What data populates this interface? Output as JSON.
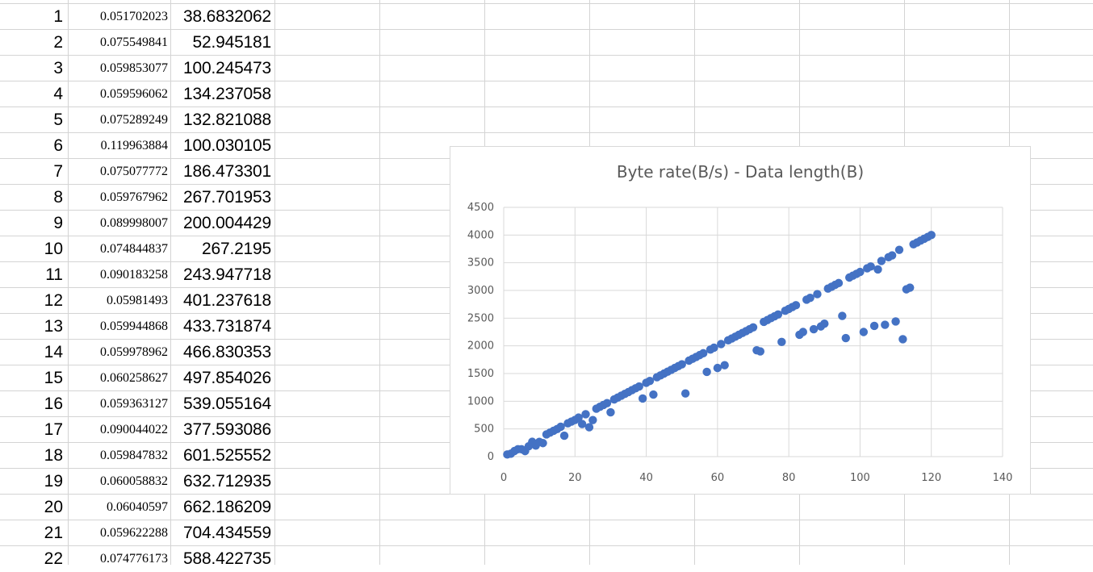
{
  "sheet": {
    "rows": [
      {
        "num": "1",
        "a": "0.051702023",
        "b": "38.6832062"
      },
      {
        "num": "2",
        "a": "0.075549841",
        "b": "52.945181"
      },
      {
        "num": "3",
        "a": "0.059853077",
        "b": "100.245473"
      },
      {
        "num": "4",
        "a": "0.059596062",
        "b": "134.237058"
      },
      {
        "num": "5",
        "a": "0.075289249",
        "b": "132.821088"
      },
      {
        "num": "6",
        "a": "0.119963884",
        "b": "100.030105"
      },
      {
        "num": "7",
        "a": "0.075077772",
        "b": "186.473301"
      },
      {
        "num": "8",
        "a": "0.059767962",
        "b": "267.701953"
      },
      {
        "num": "9",
        "a": "0.089998007",
        "b": "200.004429"
      },
      {
        "num": "10",
        "a": "0.074844837",
        "b": "267.2195"
      },
      {
        "num": "11",
        "a": "0.090183258",
        "b": "243.947718"
      },
      {
        "num": "12",
        "a": "0.05981493",
        "b": "401.237618"
      },
      {
        "num": "13",
        "a": "0.059944868",
        "b": "433.731874"
      },
      {
        "num": "14",
        "a": "0.059978962",
        "b": "466.830353"
      },
      {
        "num": "15",
        "a": "0.060258627",
        "b": "497.854026"
      },
      {
        "num": "16",
        "a": "0.059363127",
        "b": "539.055164"
      },
      {
        "num": "17",
        "a": "0.090044022",
        "b": "377.593086"
      },
      {
        "num": "18",
        "a": "0.059847832",
        "b": "601.525552"
      },
      {
        "num": "19",
        "a": "0.060058832",
        "b": "632.712935"
      },
      {
        "num": "20",
        "a": "0.06040597",
        "b": "662.186209"
      },
      {
        "num": "21",
        "a": "0.059622288",
        "b": "704.434559"
      },
      {
        "num": "22",
        "a": "0.074776173",
        "b": "588.422735"
      }
    ]
  },
  "colors": {
    "marker": "#4472c4",
    "gridline": "#d9d9d9",
    "axis_text": "#595959"
  },
  "chart_data": {
    "type": "scatter",
    "title": "Byte rate(B/s) - Data length(B)",
    "xlim": [
      0,
      140
    ],
    "ylim": [
      0,
      4500
    ],
    "x_ticks": [
      "0",
      "20",
      "40",
      "60",
      "80",
      "100",
      "120",
      "140"
    ],
    "y_ticks": [
      "0",
      "500",
      "1000",
      "1500",
      "2000",
      "2500",
      "3000",
      "3500",
      "4000",
      "4500"
    ],
    "grid": true,
    "series": [
      {
        "points": [
          [
            1,
            38.7
          ],
          [
            2,
            52.9
          ],
          [
            3,
            100.2
          ],
          [
            4,
            134.2
          ],
          [
            5,
            132.8
          ],
          [
            6,
            100.0
          ],
          [
            7,
            186.5
          ],
          [
            8,
            267.7
          ],
          [
            9,
            200.0
          ],
          [
            10,
            267.2
          ],
          [
            11,
            243.9
          ],
          [
            12,
            401.2
          ],
          [
            13,
            433.7
          ],
          [
            14,
            466.8
          ],
          [
            15,
            497.9
          ],
          [
            16,
            539.1
          ],
          [
            17,
            377.6
          ],
          [
            18,
            601.5
          ],
          [
            19,
            632.7
          ],
          [
            20,
            662.2
          ],
          [
            21,
            704.4
          ],
          [
            22,
            588.4
          ],
          [
            23,
            766
          ],
          [
            24,
            530
          ],
          [
            25,
            660
          ],
          [
            26,
            866
          ],
          [
            27,
            900
          ],
          [
            28,
            933
          ],
          [
            29,
            966
          ],
          [
            30,
            800
          ],
          [
            31,
            1033
          ],
          [
            32,
            1066
          ],
          [
            33,
            1100
          ],
          [
            34,
            1133
          ],
          [
            35,
            1166
          ],
          [
            36,
            1200
          ],
          [
            37,
            1233
          ],
          [
            38,
            1266
          ],
          [
            39,
            1050
          ],
          [
            40,
            1333
          ],
          [
            41,
            1366
          ],
          [
            42,
            1120
          ],
          [
            43,
            1433
          ],
          [
            44,
            1466
          ],
          [
            45,
            1500
          ],
          [
            46,
            1533
          ],
          [
            47,
            1566
          ],
          [
            48,
            1600
          ],
          [
            49,
            1633
          ],
          [
            50,
            1666
          ],
          [
            51,
            1140
          ],
          [
            52,
            1733
          ],
          [
            53,
            1766
          ],
          [
            54,
            1800
          ],
          [
            55,
            1833
          ],
          [
            56,
            1866
          ],
          [
            57,
            1530
          ],
          [
            58,
            1933
          ],
          [
            59,
            1966
          ],
          [
            60,
            1600
          ],
          [
            61,
            2033
          ],
          [
            62,
            1650
          ],
          [
            63,
            2100
          ],
          [
            64,
            2133
          ],
          [
            65,
            2166
          ],
          [
            66,
            2200
          ],
          [
            67,
            2233
          ],
          [
            68,
            2266
          ],
          [
            69,
            2300
          ],
          [
            70,
            2333
          ],
          [
            71,
            1920
          ],
          [
            72,
            1900
          ],
          [
            73,
            2433
          ],
          [
            74,
            2466
          ],
          [
            75,
            2500
          ],
          [
            76,
            2533
          ],
          [
            77,
            2566
          ],
          [
            78,
            2070
          ],
          [
            79,
            2633
          ],
          [
            80,
            2666
          ],
          [
            81,
            2700
          ],
          [
            82,
            2733
          ],
          [
            83,
            2200
          ],
          [
            84,
            2250
          ],
          [
            85,
            2833
          ],
          [
            86,
            2866
          ],
          [
            87,
            2300
          ],
          [
            88,
            2933
          ],
          [
            89,
            2350
          ],
          [
            90,
            2400
          ],
          [
            91,
            3033
          ],
          [
            92,
            3066
          ],
          [
            93,
            3100
          ],
          [
            94,
            3133
          ],
          [
            95,
            2540
          ],
          [
            96,
            2140
          ],
          [
            97,
            3233
          ],
          [
            98,
            3266
          ],
          [
            99,
            3300
          ],
          [
            100,
            3333
          ],
          [
            101,
            2250
          ],
          [
            102,
            3400
          ],
          [
            103,
            3433
          ],
          [
            104,
            2360
          ],
          [
            105,
            3380
          ],
          [
            106,
            3533
          ],
          [
            107,
            2380
          ],
          [
            108,
            3600
          ],
          [
            109,
            3633
          ],
          [
            110,
            2440
          ],
          [
            111,
            3733
          ],
          [
            112,
            2120
          ],
          [
            113,
            3020
          ],
          [
            114,
            3050
          ],
          [
            115,
            3833
          ],
          [
            116,
            3866
          ],
          [
            117,
            3900
          ],
          [
            118,
            3933
          ],
          [
            119,
            3966
          ],
          [
            120,
            4000
          ]
        ]
      }
    ]
  }
}
